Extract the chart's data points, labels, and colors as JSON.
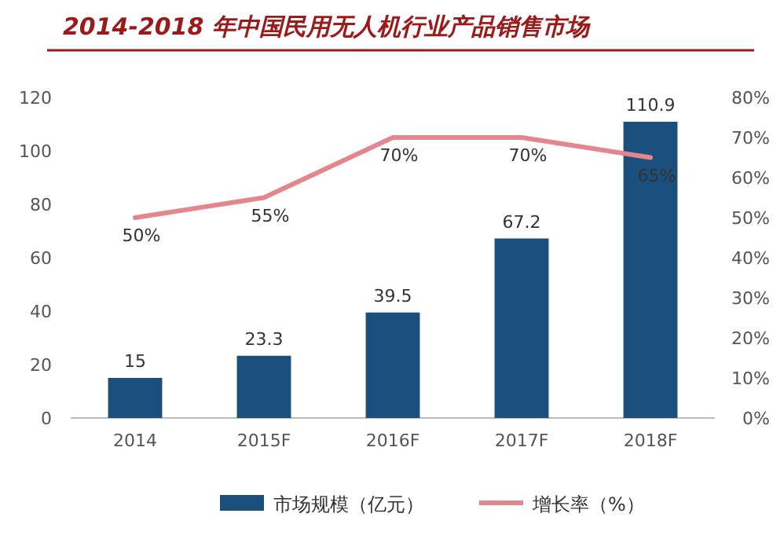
{
  "chart_data": {
    "type": "bar",
    "title": "2014-2018 年中国民用无人机行业产品销售市场",
    "categories": [
      "2014",
      "2015F",
      "2016F",
      "2017F",
      "2018F"
    ],
    "series": [
      {
        "name": "市场规模（亿元）",
        "color": "#1b4f7e",
        "values": [
          15,
          23.3,
          39.5,
          67.2,
          110.9
        ],
        "value_labels": [
          "15",
          "23.3",
          "39.5",
          "67.2",
          "110.9"
        ]
      },
      {
        "name": "增长率（%）",
        "type": "line",
        "axis": "y2",
        "color": "#e3878d",
        "values": [
          50,
          55,
          70,
          70,
          65
        ],
        "value_labels": [
          "50%",
          "55%",
          "70%",
          "70%",
          "65%"
        ]
      }
    ],
    "ylim": [
      0,
      120
    ],
    "yticks": [
      0,
      20,
      40,
      60,
      80,
      100,
      120
    ],
    "y2lim": [
      0,
      80
    ],
    "y2ticks": [
      {
        "value": 0,
        "label": "0%"
      },
      {
        "value": 10,
        "label": "10%"
      },
      {
        "value": 20,
        "label": "20%"
      },
      {
        "value": 30,
        "label": "30%"
      },
      {
        "value": 40,
        "label": "40%"
      },
      {
        "value": 50,
        "label": "50%"
      },
      {
        "value": 60,
        "label": "60%"
      },
      {
        "value": 70,
        "label": "70%"
      },
      {
        "value": 80,
        "label": "80%"
      }
    ],
    "legend": "bottom",
    "marker": "none"
  }
}
